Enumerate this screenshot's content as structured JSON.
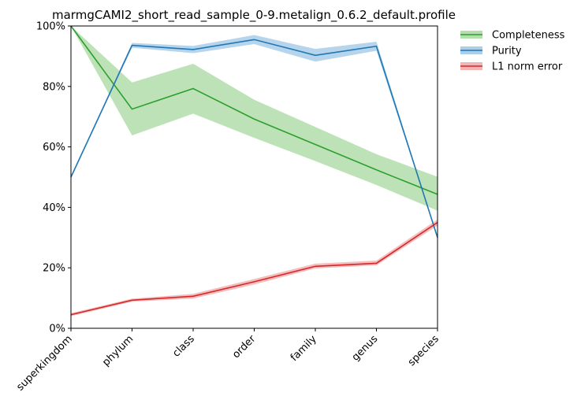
{
  "chart_data": {
    "type": "line",
    "title": "marmgCAMI2_short_read_sample_0-9.metalign_0.6.2_default.profile",
    "xlabel": "",
    "ylabel": "",
    "categories": [
      "superkingdom",
      "phylum",
      "class",
      "order",
      "family",
      "genus",
      "species"
    ],
    "ylim": [
      0,
      100
    ],
    "yticks": [
      0,
      20,
      40,
      60,
      80,
      100
    ],
    "ytick_labels": [
      "0%",
      "20%",
      "40%",
      "60%",
      "80%",
      "100%"
    ],
    "grid": false,
    "legend_position": "outside-top-right",
    "series": [
      {
        "name": "Completeness",
        "color": "#2ca02c",
        "band_color": "#a8d8a0",
        "values": [
          100,
          72.5,
          79.3,
          69.2,
          60.8,
          52.4,
          44.3
        ],
        "lower": [
          100,
          63.8,
          71.0,
          63.0,
          55.3,
          47.4,
          38.9
        ],
        "upper": [
          100,
          81.3,
          87.5,
          75.6,
          66.6,
          57.6,
          50.1
        ]
      },
      {
        "name": "Purity",
        "color": "#1f77b4",
        "band_color": "#9ec5e4",
        "values": [
          50.0,
          93.6,
          92.2,
          95.5,
          90.3,
          93.3,
          30.0
        ],
        "lower": [
          50.0,
          92.8,
          91.0,
          94.0,
          88.2,
          91.8,
          30.0
        ],
        "upper": [
          50.0,
          94.4,
          93.4,
          97.0,
          92.4,
          94.8,
          30.0
        ]
      },
      {
        "name": "L1 norm error",
        "color": "#d62728",
        "band_color": "#f0a8a8",
        "values": [
          4.5,
          9.3,
          10.6,
          15.4,
          20.5,
          21.5,
          35.0
        ],
        "lower": [
          4.0,
          8.8,
          9.8,
          14.5,
          19.8,
          20.8,
          34.0
        ],
        "upper": [
          5.0,
          9.8,
          11.4,
          16.3,
          21.4,
          22.4,
          36.0
        ]
      }
    ]
  }
}
